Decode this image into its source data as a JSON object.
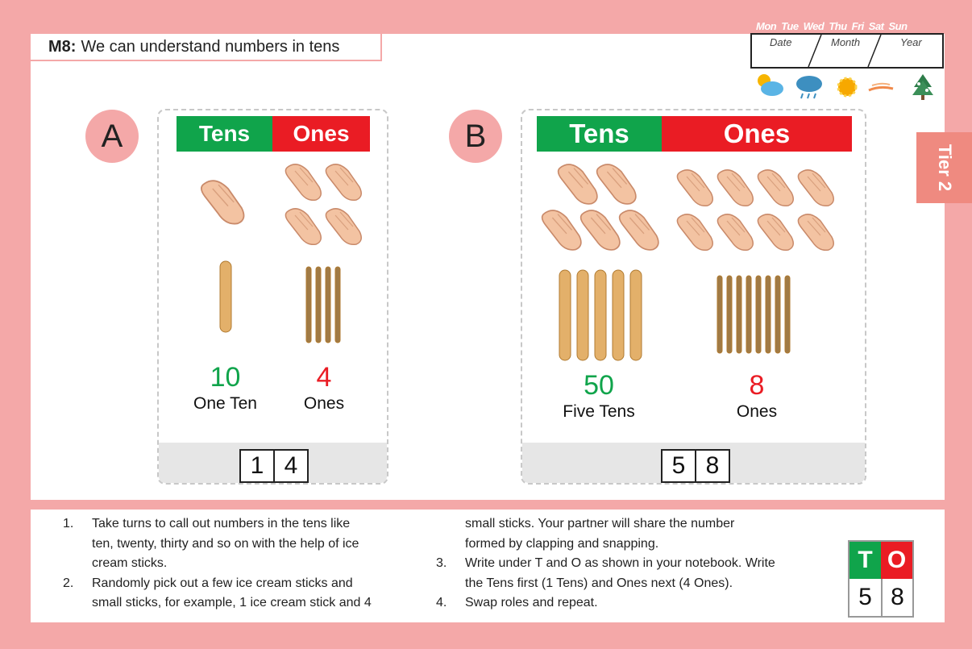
{
  "title": {
    "code": "M8:",
    "text": "We can understand numbers in tens"
  },
  "calendar": {
    "days": [
      "Mon",
      "Tue",
      "Wed",
      "Thu",
      "Fri",
      "Sat",
      "Sun"
    ],
    "fields": [
      "Date",
      "Month",
      "Year"
    ],
    "weather_icons": [
      "partly-sunny-icon",
      "rain-cloud-icon",
      "sun-icon",
      "wind-icon",
      "snowy-tree-icon"
    ]
  },
  "tier": "Tier 2",
  "section_a": {
    "letter": "A",
    "tens_header": "Tens",
    "ones_header": "Ones",
    "tens_clap_hands": 1,
    "ones_snap_hands": 4,
    "tens_sticks": 1,
    "ones_sticks": 4,
    "tens_value": "10",
    "tens_caption": "One Ten",
    "ones_value": "4",
    "ones_caption": "Ones",
    "digits": [
      "1",
      "4"
    ]
  },
  "section_b": {
    "letter": "B",
    "tens_header": "Tens",
    "ones_header": "Ones",
    "tens_clap_hands": 5,
    "ones_snap_hands": 8,
    "tens_sticks": 5,
    "ones_sticks": 8,
    "tens_value": "50",
    "tens_caption": "Five Tens",
    "ones_value": "8",
    "ones_caption": "Ones",
    "digits": [
      "5",
      "8"
    ]
  },
  "instructions": {
    "col1": [
      {
        "n": "1.",
        "lines": [
          "Take turns to call out numbers in the tens like",
          "ten, twenty, thirty and so on with the help of ice",
          "cream sticks."
        ]
      },
      {
        "n": "2.",
        "lines": [
          "Randomly pick out a few ice cream sticks and",
          "small sticks, for example, 1 ice cream stick and 4"
        ]
      }
    ],
    "col2_cont": [
      "small sticks. Your partner will share the number",
      "formed by clapping and snapping."
    ],
    "col2": [
      {
        "n": "3.",
        "lines": [
          "Write under T and O as shown in your notebook. Write",
          "the Tens first (1 Tens) and Ones next (4 Ones)."
        ]
      },
      {
        "n": "4.",
        "lines": [
          "Swap roles and repeat."
        ]
      }
    ]
  },
  "to_box": {
    "t": "T",
    "o": "O",
    "tens": "5",
    "ones": "8"
  },
  "colors": {
    "background": "#f4a8a8",
    "green": "#10a44b",
    "red": "#ea1c24",
    "tier_tab": "#ef8a80"
  }
}
